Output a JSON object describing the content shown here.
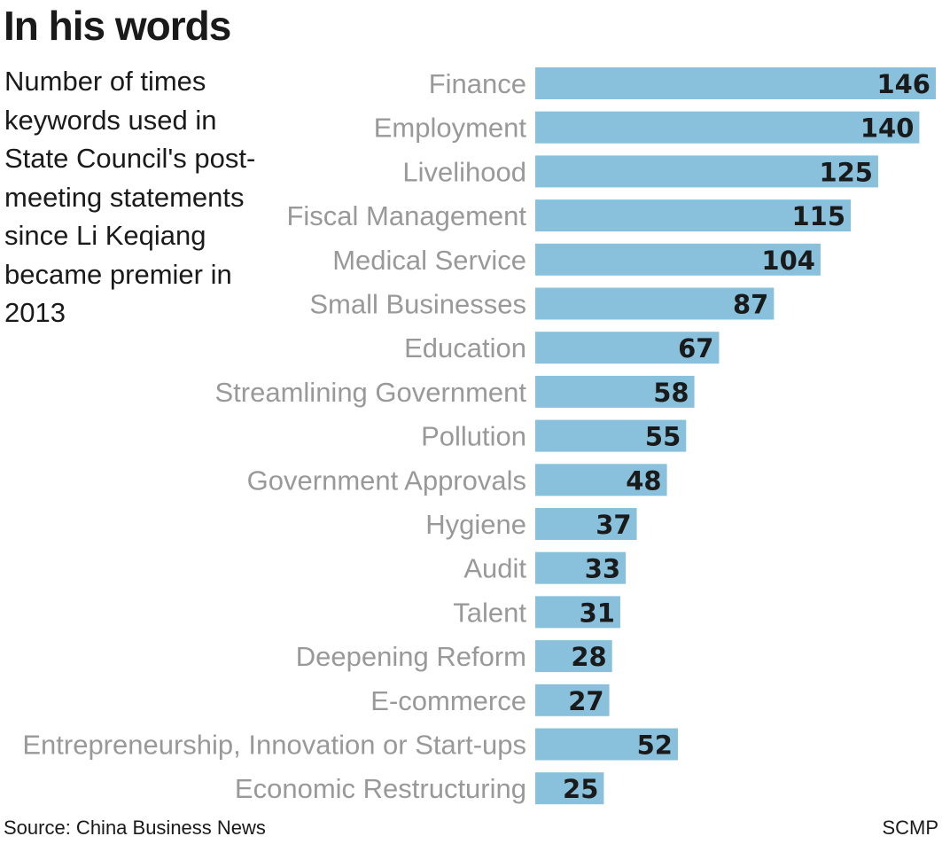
{
  "chart_data": {
    "type": "bar",
    "orientation": "horizontal",
    "title": "In his words",
    "subtitle": "Number of times keywords used in State Council's post-meeting statements since Li Keqiang became premier in 2013",
    "categories": [
      "Finance",
      "Employment",
      "Livelihood",
      "Fiscal Management",
      "Medical Service",
      "Small Businesses",
      "Education",
      "Streamlining Government",
      "Pollution",
      "Government Approvals",
      "Hygiene",
      "Audit",
      "Talent",
      "Deepening Reform",
      "E-commerce",
      "Entrepreneurship, Innovation or Start-ups",
      "Economic Restructuring"
    ],
    "values": [
      146,
      140,
      125,
      115,
      104,
      87,
      67,
      58,
      55,
      48,
      37,
      33,
      31,
      28,
      27,
      52,
      25
    ],
    "xlim": [
      0,
      146
    ],
    "xlabel": "",
    "ylabel": "",
    "bar_color": "#89c1dc",
    "label_color": "#999999",
    "value_color": "#1a1a1a",
    "source": "Source: China Business News",
    "credit": "SCMP"
  }
}
